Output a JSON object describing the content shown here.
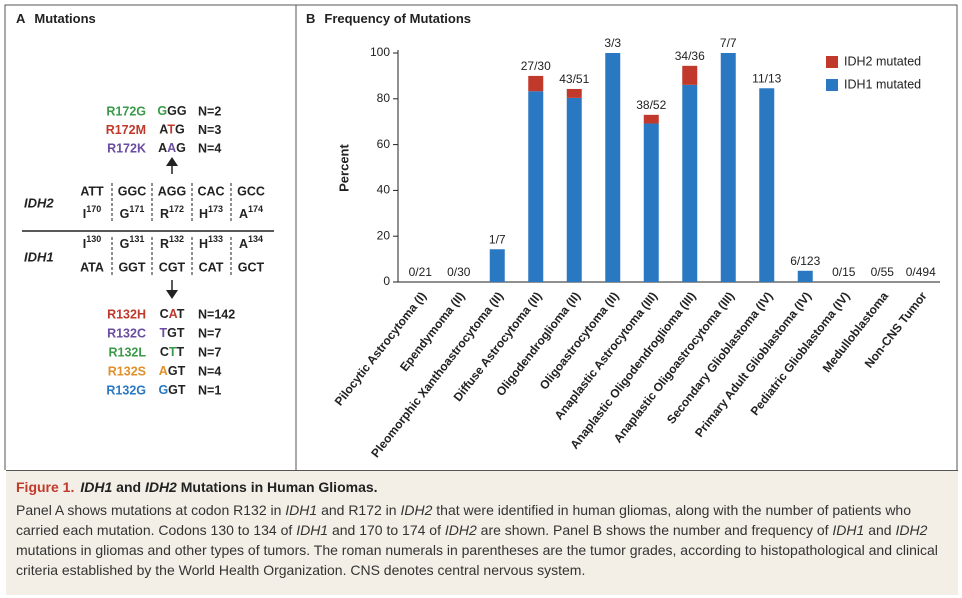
{
  "panel_a": {
    "label": "A",
    "title": "Mutations",
    "idh2": {
      "gene": "IDH2",
      "codons": [
        "ATT",
        "GGC",
        "AGG",
        "CAC",
        "GCC"
      ],
      "residues": [
        {
          "aa": "I",
          "pos": 170
        },
        {
          "aa": "G",
          "pos": 171
        },
        {
          "aa": "R",
          "pos": 172
        },
        {
          "aa": "H",
          "pos": 173
        },
        {
          "aa": "A",
          "pos": 174
        }
      ],
      "mutations": [
        {
          "name": "R172G",
          "codon": [
            "G",
            "G",
            "G"
          ],
          "count": "N=2",
          "color": "#3a9a4a"
        },
        {
          "name": "R172M",
          "codon": [
            "A",
            "T",
            "G"
          ],
          "count": "N=3",
          "color": "#c0392b"
        },
        {
          "name": "R172K",
          "codon": [
            "A",
            "A",
            "G"
          ],
          "count": "N=4",
          "color": "#6a4ca0"
        }
      ]
    },
    "idh1": {
      "gene": "IDH1",
      "codons": [
        "ATA",
        "GGT",
        "CGT",
        "CAT",
        "GCT"
      ],
      "residues": [
        {
          "aa": "I",
          "pos": 130
        },
        {
          "aa": "G",
          "pos": 131
        },
        {
          "aa": "R",
          "pos": 132
        },
        {
          "aa": "H",
          "pos": 133
        },
        {
          "aa": "A",
          "pos": 134
        }
      ],
      "mutations": [
        {
          "name": "R132H",
          "codon": [
            "C",
            "A",
            "T"
          ],
          "count": "N=142",
          "color": "#c0392b"
        },
        {
          "name": "R132C",
          "codon": [
            "T",
            "G",
            "T"
          ],
          "count": "N=7",
          "color": "#6a4ca0"
        },
        {
          "name": "R132L",
          "codon": [
            "C",
            "T",
            "T"
          ],
          "count": "N=7",
          "color": "#3a9a4a"
        },
        {
          "name": "R132S",
          "codon": [
            "A",
            "G",
            "T"
          ],
          "count": "N=4",
          "color": "#e0902a"
        },
        {
          "name": "R132G",
          "codon": [
            "G",
            "G",
            "T"
          ],
          "count": "N=1",
          "color": "#2a78c2"
        }
      ]
    }
  },
  "chart_data": {
    "type": "bar",
    "stacked": true,
    "label": "B",
    "title": "Frequency of Mutations",
    "y_label": "Percent",
    "categories": [
      "Pilocytic Astrocytoma (I)",
      "Ependymoma (II)",
      "Pleomorphic Xanthoastrocytoma (II)",
      "Diffuse Astrocytoma (II)",
      "Oligodendroglioma (II)",
      "Oligoastrocytoma (II)",
      "Anaplastic Astrocytoma (III)",
      "Anaplastic Oligodendroglioma (III)",
      "Anaplastic Oligoastrocytoma (III)",
      "Secondary Glioblastoma (IV)",
      "Primary Adult Glioblastoma (IV)",
      "Pediatric Glioblastoma (IV)",
      "Medulloblastoma",
      "Non-CNS Tumor"
    ],
    "series": [
      {
        "name": "IDH1 mutated",
        "color": "#2a78c2",
        "values": [
          0,
          0,
          14.3,
          83.3,
          80.4,
          100,
          69.2,
          86.1,
          100,
          84.6,
          4.9,
          0,
          0,
          0
        ]
      },
      {
        "name": "IDH2 mutated",
        "color": "#c0392b",
        "values": [
          0,
          0,
          0,
          6.7,
          3.9,
          0,
          3.8,
          8.3,
          0,
          0,
          0,
          0,
          0,
          0
        ]
      }
    ],
    "bar_labels": [
      "0/21",
      "0/30",
      "1/7",
      "27/30",
      "43/51",
      "3/3",
      "38/52",
      "34/36",
      "7/7",
      "11/13",
      "6/123",
      "0/15",
      "0/55",
      "0/494"
    ],
    "ylim": [
      0,
      100
    ],
    "yticks": [
      0,
      20,
      40,
      60,
      80,
      100
    ],
    "legend": "top-right"
  },
  "caption": {
    "label": "Figure 1.",
    "title": [
      {
        "text": "IDH1",
        "italic": true
      },
      {
        "text": " and "
      },
      {
        "text": "IDH2",
        "italic": true
      },
      {
        "text": " Mutations in Human Gliomas."
      }
    ],
    "body": [
      {
        "text": "Panel A shows mutations at codon R132 in "
      },
      {
        "text": "IDH1",
        "italic": true
      },
      {
        "text": " and R172 in "
      },
      {
        "text": "IDH2",
        "italic": true
      },
      {
        "text": " that were identified in human gliomas, along with the number of patients who carried each mutation. Codons 130 to 134 of "
      },
      {
        "text": "IDH1",
        "italic": true
      },
      {
        "text": " and 170 to 174 of "
      },
      {
        "text": "IDH2",
        "italic": true
      },
      {
        "text": " are shown. Panel B shows the number and frequency of "
      },
      {
        "text": "IDH1",
        "italic": true
      },
      {
        "text": " and "
      },
      {
        "text": "IDH2",
        "italic": true
      },
      {
        "text": " mutations in gliomas and other types of tumors. The roman numerals in parentheses are the tumor grades, according to histopathological and clinical criteria established by the World Health Organization. CNS denotes central nervous system."
      }
    ]
  }
}
